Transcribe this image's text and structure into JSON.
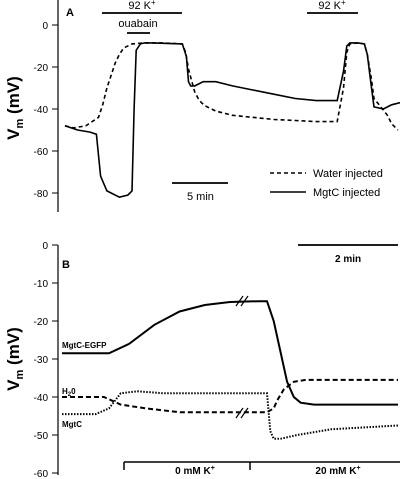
{
  "chart_data": [
    {
      "panel": "A",
      "type": "line",
      "ylabel_main": "V",
      "ylabel_sub": "m",
      "ylabel_unit": " (mV)",
      "yticks": [
        "0",
        "-20",
        "-40",
        "-60",
        "-80"
      ],
      "ylim": [
        -92,
        8
      ],
      "series": [
        {
          "name": "Water injected",
          "dash": true,
          "x": [
            0,
            2,
            5,
            8,
            9,
            10,
            11,
            12,
            13,
            14,
            16,
            19,
            23,
            28,
            28.8,
            29.5,
            30.3,
            31,
            31.8,
            32.6,
            33.5,
            34.5,
            36,
            38,
            40,
            45,
            50,
            55,
            60,
            65,
            66.5,
            67.3,
            68,
            70,
            71.5,
            72.2,
            73.2,
            73.8,
            75,
            77,
            78,
            79,
            79.5
          ],
          "y": [
            -48,
            -49,
            -48,
            -44,
            -38,
            -30,
            -24,
            -18,
            -14,
            -11,
            -9,
            -8.5,
            -8.5,
            -9,
            -13,
            -21,
            -27,
            -32,
            -35,
            -37,
            -38.5,
            -39.5,
            -41,
            -42,
            -43,
            -44,
            -45,
            -45.5,
            -46,
            -46,
            -30,
            -13,
            -9,
            -8.5,
            -9,
            -14,
            -26,
            -35,
            -38,
            -43,
            -47,
            -49,
            -50
          ]
        },
        {
          "name": "MgtC injected",
          "dash": false,
          "x": [
            0,
            3,
            6,
            7.5,
            8,
            8.5,
            10,
            13,
            15,
            16,
            16.5,
            17,
            18,
            19,
            21,
            28,
            29,
            29.5,
            30,
            31,
            33,
            36,
            40,
            45,
            50,
            55,
            60,
            65,
            66.5,
            67.3,
            68,
            70,
            71.5,
            72.2,
            73,
            73.8,
            76,
            78,
            80
          ],
          "y": [
            -48,
            -50,
            -51,
            -52,
            -62,
            -72,
            -79,
            -82,
            -81,
            -79,
            -40,
            -12,
            -9,
            -8.5,
            -8.5,
            -9,
            -15,
            -27,
            -29,
            -29,
            -27,
            -27,
            -29,
            -31,
            -33,
            -35,
            -36,
            -36,
            -22,
            -10,
            -8.5,
            -8.5,
            -9,
            -14,
            -27,
            -39,
            -40,
            -38,
            -37
          ]
        }
      ],
      "annotations": {
        "k_label": "92 K",
        "k_superscript": "+",
        "ouabain_label": "ouabain",
        "scale_label": "5 min"
      }
    },
    {
      "panel": "B",
      "type": "line",
      "ylabel_main": "V",
      "ylabel_sub": "m",
      "ylabel_unit": " (mV)",
      "yticks": [
        "0",
        "-10",
        "-20",
        "-30",
        "-40",
        "-50",
        "-60"
      ],
      "ylim": [
        -60,
        0
      ],
      "series": [
        {
          "name": "MgtC-EGFP",
          "style": "solid",
          "x": [
            0,
            25,
            28,
            40,
            55,
            70,
            85,
            100,
            117,
            122,
            126,
            130,
            134,
            138,
            142,
            150,
            160,
            175,
            190,
            200
          ],
          "y": [
            -28.5,
            -28.5,
            -28.5,
            -26,
            -21,
            -17.5,
            -15.8,
            -15,
            -14.8,
            -14.8,
            -20,
            -28,
            -36,
            -40,
            -41.5,
            -42,
            -42,
            -42,
            -42,
            -42
          ]
        },
        {
          "name": "H20",
          "style": "dash",
          "x": [
            0,
            25,
            35,
            50,
            70,
            90,
            110,
            117,
            122,
            126,
            128,
            132,
            138,
            145,
            155,
            170,
            185,
            200
          ],
          "y": [
            -40,
            -40,
            -42,
            -43,
            -44,
            -44,
            -44,
            -44,
            -44,
            -43,
            -41,
            -38,
            -36,
            -35.5,
            -35.5,
            -35.5,
            -35.5,
            -35.5
          ]
        },
        {
          "name": "MgtC",
          "style": "dot",
          "x": [
            0,
            20,
            28,
            35,
            45,
            60,
            80,
            100,
            117,
            122,
            124,
            126,
            130,
            140,
            160,
            180,
            200
          ],
          "y": [
            -44.5,
            -44.5,
            -43,
            -39,
            -38.5,
            -39,
            -39,
            -39,
            -39,
            -39,
            -49,
            -51,
            -51,
            -50,
            -48.5,
            -48,
            -47.5
          ]
        }
      ],
      "labels": {
        "egfp": "MgtC-EGFP",
        "h2o": "H",
        "h2o_sub": "2",
        "h2o_end": "0",
        "mgtc": "MgtC"
      },
      "annotations": {
        "scale_label": "2 min",
        "condition_0": "0 mM K",
        "condition_20": "20 mM K",
        "k_superscript": "+"
      }
    }
  ]
}
